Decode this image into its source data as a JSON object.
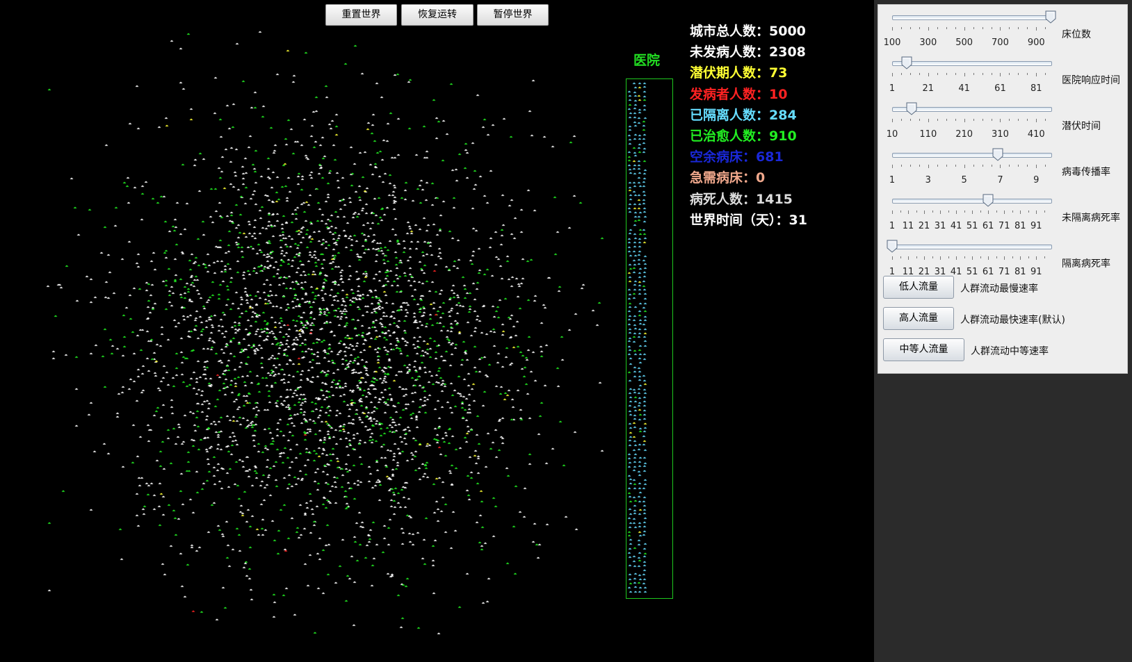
{
  "toolbar": {
    "reset_label": "重置世界",
    "resume_label": "恢复运转",
    "pause_label": "暂停世界"
  },
  "hospital": {
    "label": "医院"
  },
  "stats": [
    {
      "label": "城市总人数：",
      "value": "5000",
      "color": "#ffffff"
    },
    {
      "label": "未发病人数：",
      "value": "2308",
      "color": "#ffffff"
    },
    {
      "label": "潜伏期人数：",
      "value": "73",
      "color": "#ffff33"
    },
    {
      "label": "发病者人数：",
      "value": "10",
      "color": "#ff2222"
    },
    {
      "label": "已隔离人数：",
      "value": "284",
      "color": "#66ddff"
    },
    {
      "label": "已治愈人数：",
      "value": "910",
      "color": "#22ee22"
    },
    {
      "label": "空余病床：",
      "value": "681",
      "color": "#1a28d8"
    },
    {
      "label": "急需病床：",
      "value": "0",
      "color": "#f0a88c"
    },
    {
      "label": "病死人数：",
      "value": "1415",
      "color": "#dddddd"
    },
    {
      "label": "世界时间（天）：",
      "value": "31",
      "color": "#ffffff"
    }
  ],
  "sliders": [
    {
      "name": "床位数",
      "ticks": [
        "100",
        "300",
        "500",
        "700",
        "900"
      ],
      "min": 100,
      "max": 1000,
      "value": 1000
    },
    {
      "name": "医院响应时间",
      "ticks": [
        "1",
        "21",
        "41",
        "61",
        "81"
      ],
      "min": 1,
      "max": 100,
      "value": 10
    },
    {
      "name": "潜伏时间",
      "ticks": [
        "10",
        "110",
        "210",
        "310",
        "410"
      ],
      "min": 10,
      "max": 500,
      "value": 70
    },
    {
      "name": "病毒传播率",
      "ticks": [
        "1",
        "3",
        "5",
        "7",
        "9"
      ],
      "min": 1,
      "max": 10,
      "value": 7
    },
    {
      "name": "未隔离病死率",
      "ticks": [
        "1",
        "11",
        "21",
        "31",
        "41",
        "51",
        "61",
        "71",
        "81",
        "91"
      ],
      "min": 1,
      "max": 100,
      "value": 61
    },
    {
      "name": "隔离病死率",
      "ticks": [
        "1",
        "11",
        "21",
        "31",
        "41",
        "51",
        "61",
        "71",
        "81",
        "91"
      ],
      "min": 1,
      "max": 100,
      "value": 1
    }
  ],
  "flow_buttons": [
    {
      "label": "低人流量",
      "desc": "人群流动最慢速率"
    },
    {
      "label": "高人流量",
      "desc": "人群流动最快速率(默认)"
    },
    {
      "label": "中等人流量",
      "desc": "人群流动中等速率"
    }
  ],
  "colors": {
    "healthy": "#ffffff",
    "latent": "#ffff33",
    "sick": "#ff2222",
    "isolated": "#66ddff",
    "cured": "#22ee22",
    "hospital_border": "#1fc91f"
  }
}
